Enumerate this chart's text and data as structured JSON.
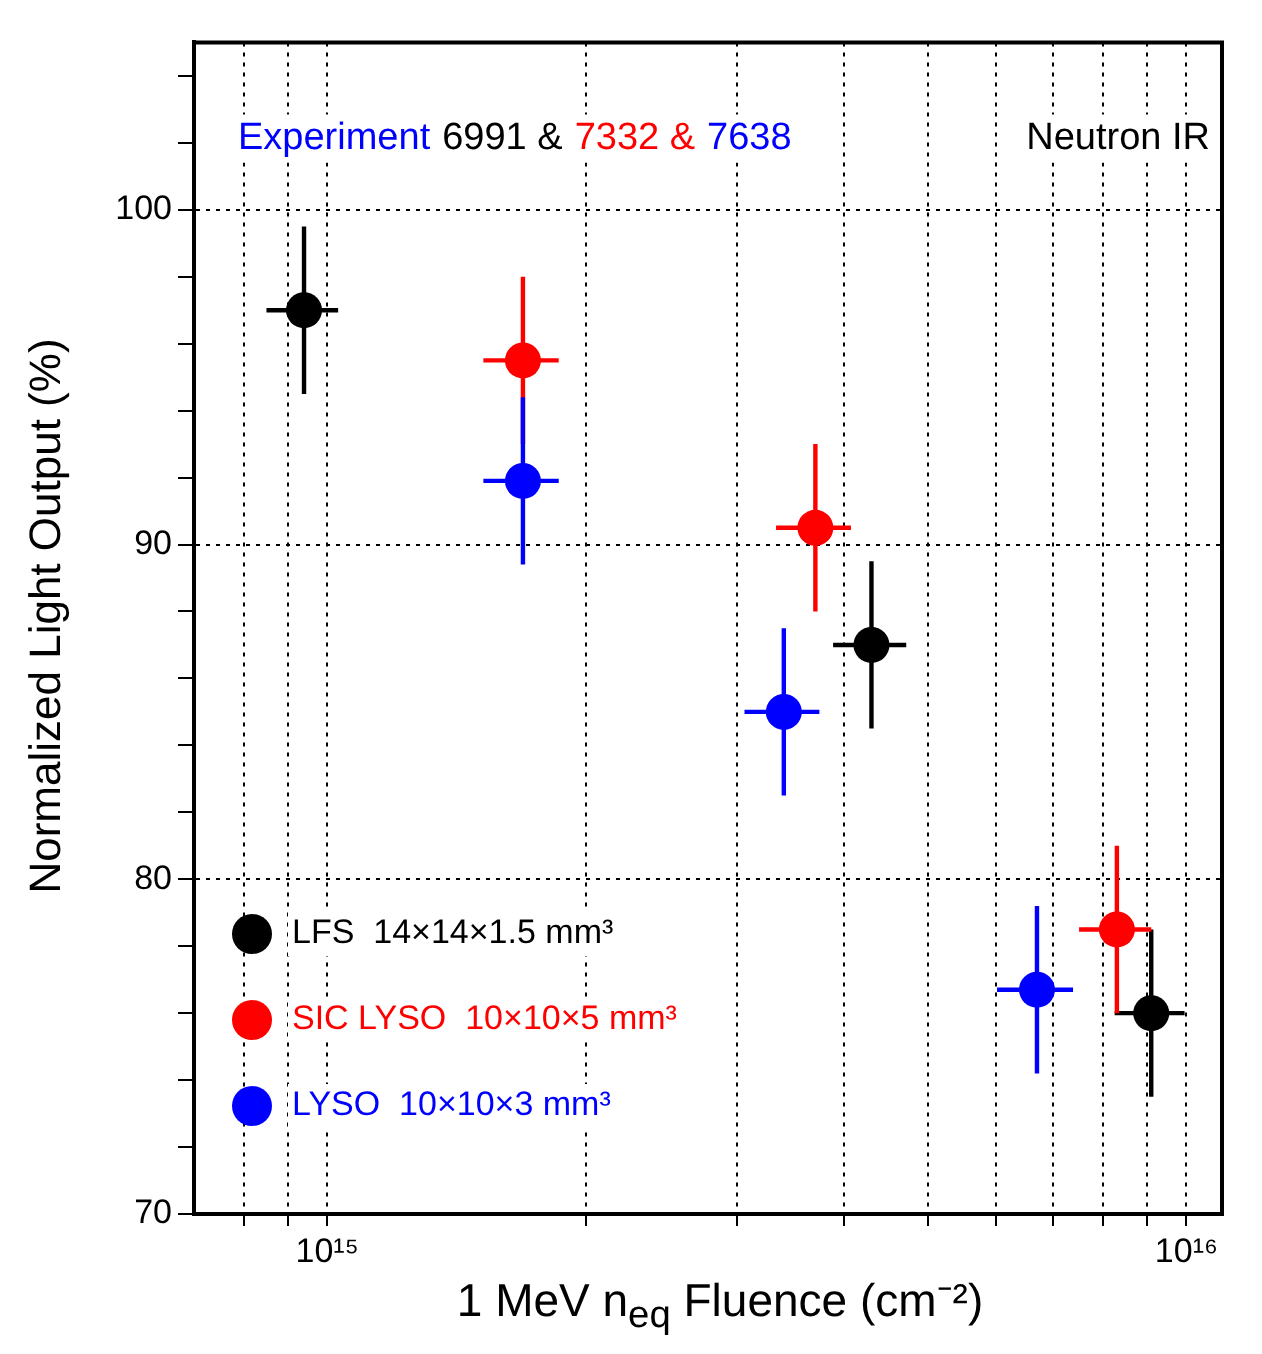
{
  "chart_data": {
    "type": "scatter",
    "xlabel": "1 MeV n$_{eq}$ Fluence (cm⁻²)",
    "ylabel": "Normalized Light Output (%)",
    "annotations": [
      "Experiment",
      "6991 &",
      "7332 &",
      "7638",
      "Neutron IR"
    ],
    "series": [
      {
        "name": "LFS  14×14×1.5 mm³",
        "color": "#000000",
        "x": [
          940000000000000.0,
          4300000000000000.0,
          9100000000000000.0
        ],
        "values": [
          97.0,
          87.0,
          76.0
        ],
        "errors": [
          2.5,
          2.5,
          2.5
        ],
        "xerrors": [
          90000000000000.0,
          420000000000000.0,
          850000000000000.0
        ]
      },
      {
        "name": "SIC LYSO  10×10×5 mm³",
        "color": "#ff0000",
        "x": [
          1690000000000000.0,
          3700000000000000.0,
          8300000000000000.0
        ],
        "values": [
          95.5,
          90.5,
          78.5
        ],
        "errors": [
          2.5,
          2.5,
          2.5
        ],
        "xerrors": [
          170000000000000.0,
          370000000000000.0,
          800000000000000.0
        ]
      },
      {
        "name": "LYSO  10×10×3 mm³",
        "color": "#0000ff",
        "x": [
          1690000000000000.0,
          3400000000000000.0,
          6700000000000000.0
        ],
        "values": [
          91.9,
          85.0,
          76.7
        ],
        "errors": [
          2.5,
          2.5,
          2.5
        ],
        "xerrors": [
          170000000000000.0,
          340000000000000.0,
          680000000000000.0
        ]
      }
    ],
    "marker": "circle",
    "legend": "bottom left",
    "grid": true,
    "log": "x",
    "xlim": [
      700000000000000.0,
      1.1e+16
    ],
    "xticks": [
      {
        "value": 800000000000000.0,
        "label": null
      },
      {
        "value": 900000000000000.0,
        "label": null
      },
      {
        "value": 1000000000000000.0,
        "label": "10¹⁵"
      },
      {
        "value": 2000000000000000.0,
        "label": null
      },
      {
        "value": 3000000000000000.0,
        "label": null
      },
      {
        "value": 4000000000000000.0,
        "label": null
      },
      {
        "value": 5000000000000000.0,
        "label": null
      },
      {
        "value": 6000000000000000.0,
        "label": null
      },
      {
        "value": 7000000000000000.0,
        "label": null
      },
      {
        "value": 8000000000000000.0,
        "label": null
      },
      {
        "value": 9000000000000000.0,
        "label": null
      },
      {
        "value": 1e+16,
        "label": "10¹⁶"
      }
    ],
    "ylim": [
      70,
      105
    ],
    "yticks": [
      70,
      {
        "value": 72,
        "label": null
      },
      {
        "value": 74,
        "label": null
      },
      {
        "value": 76,
        "label": null
      },
      {
        "value": 78,
        "label": null
      },
      80,
      {
        "value": 82,
        "label": null
      },
      {
        "value": 84,
        "label": null
      },
      {
        "value": 86,
        "label": null
      },
      {
        "value": 88,
        "label": null
      },
      90,
      {
        "value": 92,
        "label": null
      },
      {
        "value": 94,
        "label": null
      },
      {
        "value": 96,
        "label": null
      },
      {
        "value": 98,
        "label": null
      },
      100,
      {
        "value": 102,
        "label": null
      },
      {
        "value": 104,
        "label": null
      }
    ]
  }
}
